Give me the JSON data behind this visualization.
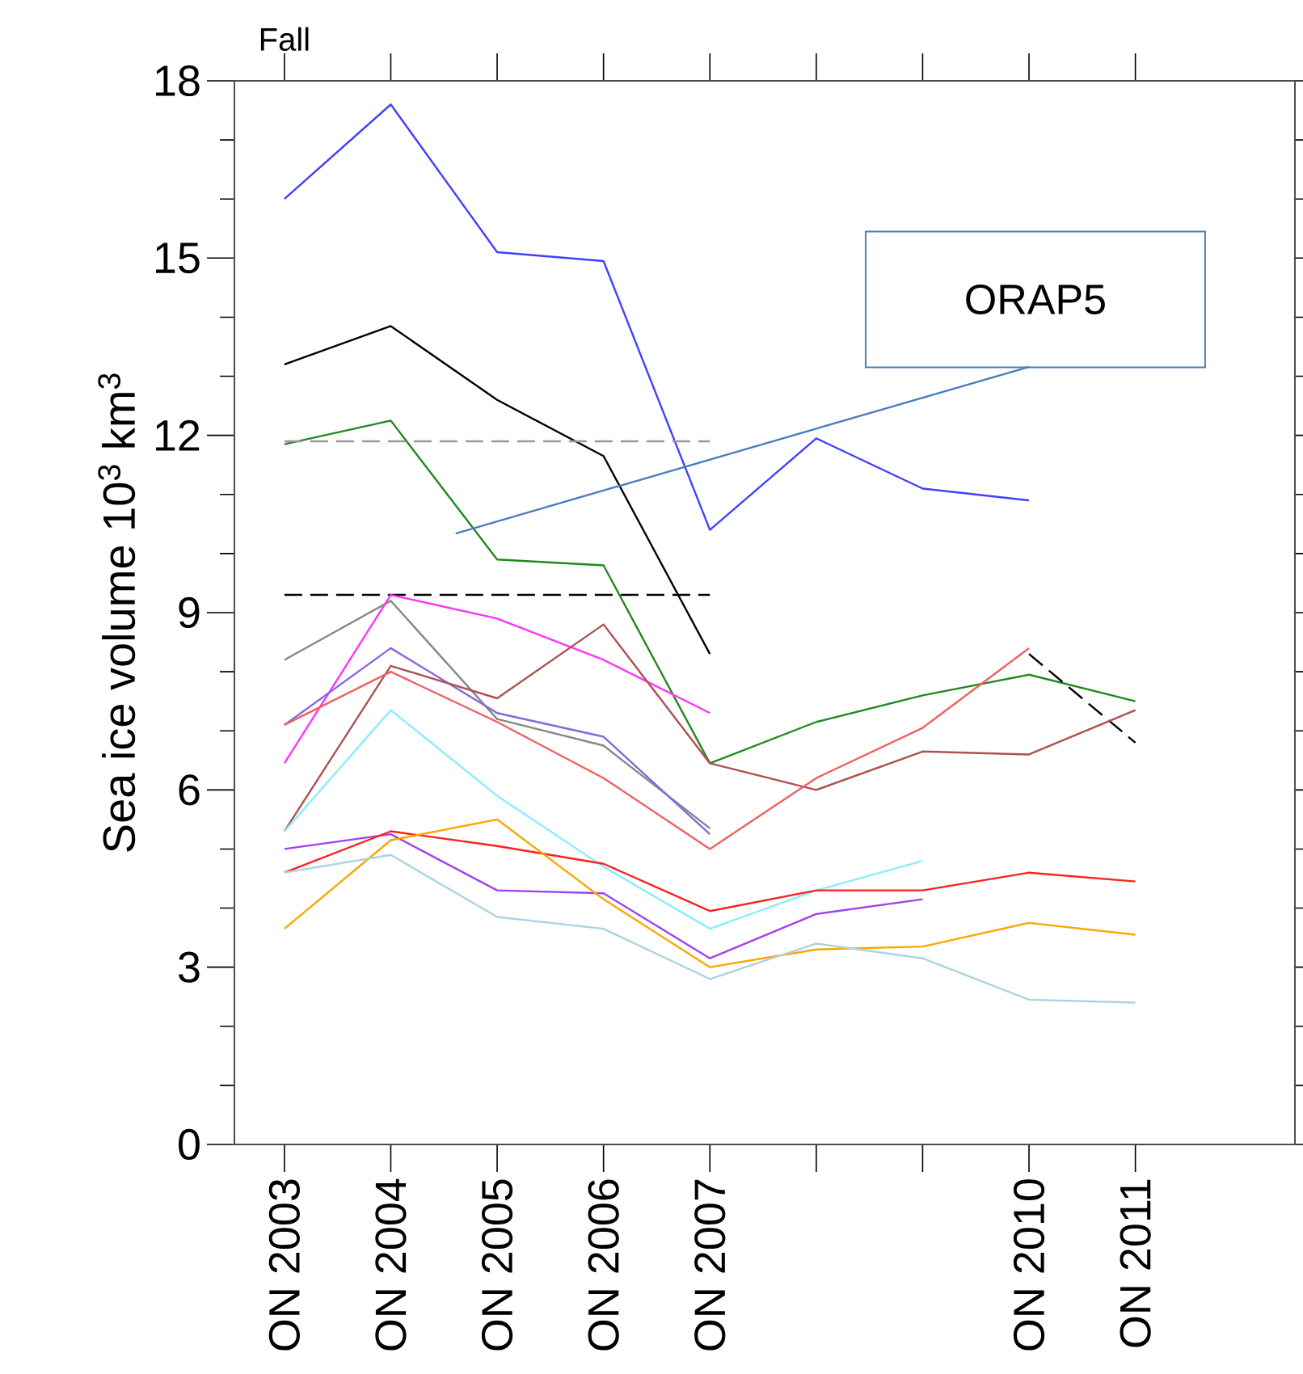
{
  "chart_data": {
    "type": "line",
    "title": "Fall",
    "ylabel": "Sea ice volume 10$^{3}$ km$^{3}$",
    "categories": [
      "ON 2003",
      "ON 2004",
      "ON 2005",
      "ON 2006",
      "ON 2007",
      null,
      null,
      "ON 2010",
      "ON 2011"
    ],
    "ylim": [
      0,
      18
    ],
    "yticks": [
      0,
      3,
      6,
      9,
      12,
      15,
      18
    ],
    "annotations": [
      "ORAP5"
    ],
    "series": [
      {
        "color": "#4040ff",
        "values": [
          16.0,
          17.6,
          15.1,
          14.95,
          10.4,
          11.95,
          11.1,
          10.9,
          null
        ]
      },
      {
        "color": "#000000",
        "values": [
          13.2,
          13.85,
          12.6,
          11.65,
          8.3,
          null,
          null,
          null,
          null
        ]
      },
      {
        "color": "#228822",
        "values": [
          11.85,
          12.25,
          9.9,
          9.8,
          6.45,
          7.15,
          7.6,
          7.95,
          7.5
        ]
      },
      {
        "color": "#999999",
        "line_style": "dashed",
        "values": [
          11.9,
          11.9,
          11.9,
          11.9,
          11.9,
          null,
          null,
          null,
          null
        ]
      },
      {
        "color": "#000000",
        "line_style": "dashed",
        "values": [
          9.3,
          9.3,
          9.3,
          9.3,
          9.3,
          null,
          null,
          null,
          null
        ]
      },
      {
        "color": "#000000",
        "line_style": "dashed",
        "values": [
          null,
          null,
          null,
          null,
          null,
          null,
          null,
          8.3,
          6.8
        ]
      },
      {
        "color": "#888888",
        "values": [
          8.2,
          9.2,
          7.2,
          6.75,
          5.35,
          null,
          null,
          null,
          null
        ]
      },
      {
        "color": "#ff33ff",
        "values": [
          6.45,
          9.3,
          8.9,
          8.2,
          7.3,
          null,
          null,
          null,
          null
        ]
      },
      {
        "color": "#8866dd",
        "values": [
          7.1,
          8.4,
          7.3,
          6.9,
          5.25,
          null,
          null,
          null,
          null
        ]
      },
      {
        "color": "#b05050",
        "values": [
          5.3,
          8.1,
          7.55,
          8.8,
          6.45,
          6.0,
          6.65,
          6.6,
          7.35
        ]
      },
      {
        "color": "#f06060",
        "values": [
          7.1,
          8.0,
          7.15,
          6.2,
          5.0,
          6.2,
          7.05,
          8.4,
          null
        ]
      },
      {
        "color": "#88eeff",
        "values": [
          5.3,
          7.35,
          5.9,
          4.7,
          3.65,
          4.3,
          4.8,
          null,
          null
        ]
      },
      {
        "color": "#a040f0",
        "values": [
          5.0,
          5.25,
          4.3,
          4.25,
          3.15,
          3.9,
          4.15,
          null,
          null
        ]
      },
      {
        "color": "#ff2020",
        "values": [
          4.6,
          5.3,
          5.05,
          4.75,
          3.95,
          4.3,
          4.3,
          4.6,
          4.45
        ]
      },
      {
        "color": "#ffa500",
        "values": [
          3.65,
          5.15,
          5.5,
          4.15,
          3.0,
          3.3,
          3.35,
          3.75,
          3.55
        ]
      },
      {
        "color": "#aad4e0",
        "values": [
          4.6,
          4.9,
          3.85,
          3.65,
          2.8,
          3.4,
          3.15,
          2.45,
          2.4
        ]
      }
    ]
  }
}
